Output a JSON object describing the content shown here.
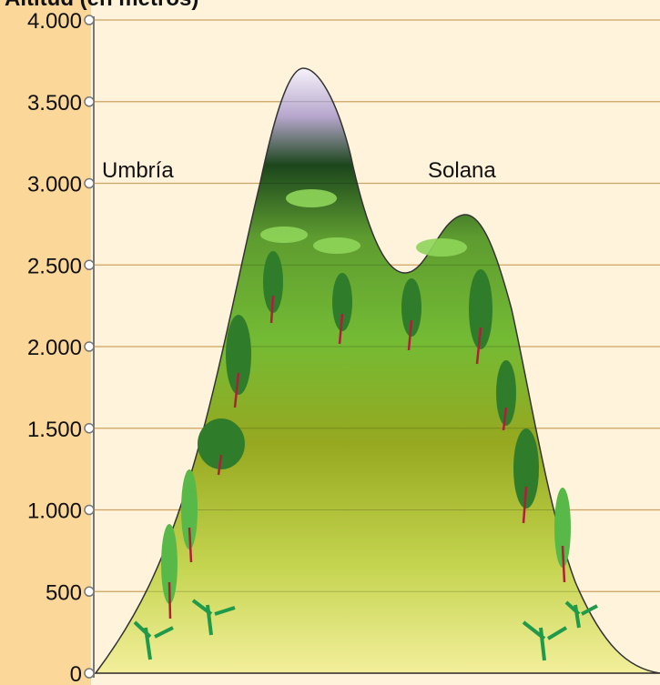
{
  "axis": {
    "title": "Altitud (en metros)",
    "ticks": [
      "4.000",
      "3.500",
      "3.000",
      "2.500",
      "2.000",
      "1.500",
      "1.000",
      "500",
      "0"
    ]
  },
  "labels": {
    "left": "Umbría",
    "right": "Solana"
  }
}
